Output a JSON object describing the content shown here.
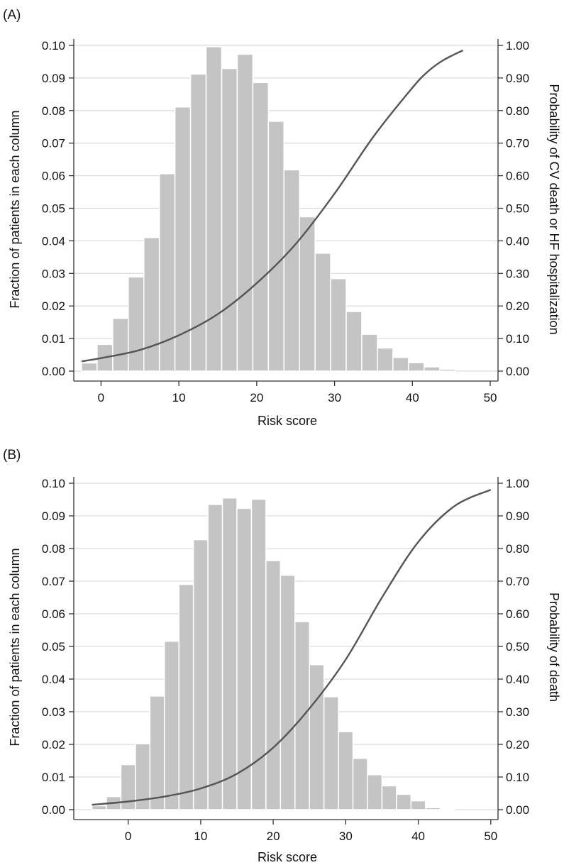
{
  "chart_data": [
    {
      "type": "bar",
      "panel_label": "(A)",
      "xlabel": "Risk score",
      "ylabel_left": "Fraction of patients in each column",
      "ylabel_right": "Probability of CV death or HF hospitalization",
      "xlim": [
        -3.5,
        51
      ],
      "ylim_left": [
        0,
        0.1
      ],
      "ylim_right": [
        0,
        1
      ],
      "x_ticks": [
        "0",
        "10",
        "20",
        "30",
        "40",
        "50"
      ],
      "y_left_ticks": [
        "0.00",
        "0.01",
        "0.02",
        "0.03",
        "0.04",
        "0.05",
        "0.06",
        "0.07",
        "0.08",
        "0.09",
        "0.10"
      ],
      "y_right_ticks": [
        "0.00",
        "0.10",
        "0.20",
        "0.30",
        "0.40",
        "0.50",
        "0.60",
        "0.70",
        "0.80",
        "0.90",
        "1.00"
      ],
      "grid": true,
      "histogram": {
        "bin_start": -2.5,
        "bin_width": 2.0,
        "values": [
          0.0025,
          0.0082,
          0.0162,
          0.0289,
          0.041,
          0.0606,
          0.0811,
          0.0912,
          0.0996,
          0.0929,
          0.0973,
          0.0886,
          0.0767,
          0.0618,
          0.0474,
          0.0362,
          0.0284,
          0.0183,
          0.0113,
          0.0071,
          0.0042,
          0.0026,
          0.0013,
          0.0006
        ]
      },
      "probability_curve": {
        "x": [
          -2.5,
          0,
          5,
          10,
          15,
          20,
          25,
          30,
          35,
          40,
          42,
          44,
          46.5
        ],
        "y": [
          0.03,
          0.04,
          0.065,
          0.11,
          0.175,
          0.27,
          0.39,
          0.545,
          0.72,
          0.87,
          0.92,
          0.955,
          0.985
        ]
      }
    },
    {
      "type": "bar",
      "panel_label": "(B)",
      "xlabel": "Risk score",
      "ylabel_left": "Fraction of patients in each column",
      "ylabel_right": "Probability of death",
      "xlim": [
        -7.5,
        51
      ],
      "ylim_left": [
        0,
        0.1
      ],
      "ylim_right": [
        0,
        1
      ],
      "x_ticks": [
        "0",
        "10",
        "20",
        "30",
        "40",
        "50"
      ],
      "y_left_ticks": [
        "0.00",
        "0.01",
        "0.02",
        "0.03",
        "0.04",
        "0.05",
        "0.06",
        "0.07",
        "0.08",
        "0.09",
        "0.10"
      ],
      "y_right_ticks": [
        "0.00",
        "0.10",
        "0.20",
        "0.30",
        "0.40",
        "0.50",
        "0.60",
        "0.70",
        "0.80",
        "0.90",
        "1.00"
      ],
      "grid": true,
      "histogram": {
        "bin_start": -5,
        "bin_width": 2.0,
        "values": [
          0.0012,
          0.004,
          0.0138,
          0.0202,
          0.0348,
          0.0516,
          0.069,
          0.0827,
          0.0935,
          0.0955,
          0.0923,
          0.0951,
          0.0763,
          0.0718,
          0.0576,
          0.0444,
          0.0346,
          0.0239,
          0.0157,
          0.0107,
          0.0073,
          0.0047,
          0.0027,
          0.0006,
          0.0003
        ]
      },
      "probability_curve": {
        "x": [
          -5,
          0,
          5,
          10,
          15,
          20,
          25,
          30,
          35,
          40,
          45,
          50
        ],
        "y": [
          0.015,
          0.025,
          0.04,
          0.065,
          0.11,
          0.19,
          0.31,
          0.46,
          0.65,
          0.82,
          0.93,
          0.98
        ]
      }
    }
  ]
}
